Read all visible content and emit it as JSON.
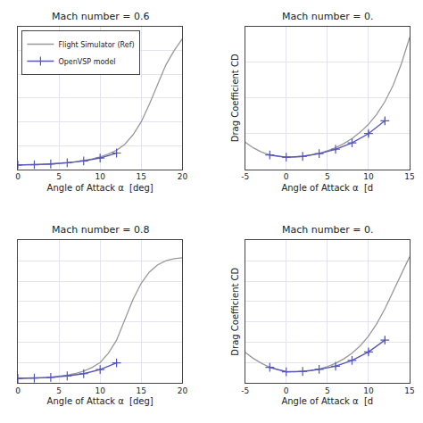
{
  "chart_data": [
    {
      "type": "line",
      "title": "Mach number = 0.6",
      "x_label": "Angle of Attack α  [deg]",
      "xlim": [
        0,
        20
      ],
      "xticks": [
        0,
        5,
        10,
        15,
        20
      ],
      "ylim": [
        0,
        0.6
      ],
      "yticks": [
        0,
        0.1,
        0.2,
        0.3,
        0.4,
        0.5,
        0.6
      ],
      "grid": true,
      "tick_labels": "x",
      "legend": "upper left",
      "series": [
        {
          "name": "Flight Simulator (Ref)",
          "color": "#999999",
          "x": [
            0,
            1,
            2,
            3,
            4,
            5,
            6,
            7,
            8,
            9,
            10,
            11,
            12,
            13,
            14,
            15,
            16,
            17,
            18,
            19,
            20
          ],
          "values": [
            0.018,
            0.018,
            0.019,
            0.02,
            0.022,
            0.024,
            0.027,
            0.031,
            0.036,
            0.043,
            0.052,
            0.064,
            0.08,
            0.105,
            0.145,
            0.2,
            0.275,
            0.36,
            0.44,
            0.5,
            0.55
          ]
        },
        {
          "name": "OpenVSP model",
          "color": "#5555bb",
          "marker": "plus",
          "x": [
            0,
            2,
            4,
            6,
            8,
            10,
            12
          ],
          "values": [
            0.018,
            0.019,
            0.022,
            0.027,
            0.035,
            0.047,
            0.068
          ],
          "errors": [
            0.0015,
            0.0015,
            0.0015,
            0.002,
            0.003,
            0.004,
            0.005
          ]
        }
      ]
    },
    {
      "type": "line",
      "title": "Mach number = 0.",
      "x_label": "Angle of Attack α  [d",
      "y_label": "Drag Coefficient CD",
      "xlim": [
        -5,
        15
      ],
      "xticks": [
        -5,
        0,
        5,
        10,
        15
      ],
      "ylim": [
        0,
        0.2
      ],
      "yticks": [
        0,
        0.05,
        0.1,
        0.15,
        0.2
      ],
      "grid": true,
      "tick_labels": "x",
      "series": [
        {
          "color": "#999999",
          "x": [
            -5,
            -4,
            -3,
            -2,
            -1,
            0,
            1,
            2,
            3,
            4,
            5,
            6,
            7,
            8,
            9,
            10,
            11,
            12,
            13,
            14,
            15
          ],
          "values": [
            0.038,
            0.03,
            0.024,
            0.02,
            0.018,
            0.017,
            0.017,
            0.018,
            0.02,
            0.022,
            0.026,
            0.03,
            0.036,
            0.043,
            0.052,
            0.063,
            0.077,
            0.095,
            0.118,
            0.148,
            0.185
          ]
        },
        {
          "color": "#5555bb",
          "marker": "plus",
          "x": [
            -2,
            0,
            2,
            4,
            6,
            8,
            10,
            12
          ],
          "values": [
            0.02,
            0.017,
            0.018,
            0.022,
            0.028,
            0.037,
            0.05,
            0.068
          ],
          "errors": [
            0.0015,
            0.0015,
            0.0015,
            0.002,
            0.002,
            0.003,
            0.004,
            0.005
          ]
        }
      ]
    },
    {
      "type": "line",
      "title": "Mach number = 0.8",
      "x_label": "Angle of Attack α  [deg]",
      "xlim": [
        0,
        20
      ],
      "xticks": [
        0,
        5,
        10,
        15,
        20
      ],
      "ylim": [
        0,
        0.7
      ],
      "yticks": [
        0,
        0.1,
        0.2,
        0.3,
        0.4,
        0.5,
        0.6,
        0.7
      ],
      "grid": true,
      "tick_labels": "x",
      "series": [
        {
          "color": "#999999",
          "x": [
            0,
            1,
            2,
            3,
            4,
            5,
            6,
            7,
            8,
            9,
            10,
            11,
            12,
            13,
            14,
            15,
            16,
            17,
            18,
            19,
            20
          ],
          "values": [
            0.022,
            0.022,
            0.023,
            0.025,
            0.028,
            0.032,
            0.038,
            0.046,
            0.058,
            0.075,
            0.1,
            0.145,
            0.21,
            0.31,
            0.41,
            0.49,
            0.545,
            0.58,
            0.6,
            0.61,
            0.615
          ]
        },
        {
          "color": "#5555bb",
          "marker": "plus",
          "x": [
            0,
            2,
            4,
            6,
            8,
            10,
            12
          ],
          "values": [
            0.022,
            0.023,
            0.027,
            0.034,
            0.045,
            0.065,
            0.098
          ],
          "errors": [
            0.0015,
            0.0015,
            0.002,
            0.003,
            0.004,
            0.005,
            0.008
          ]
        }
      ]
    },
    {
      "type": "line",
      "title": "Mach number = 0.",
      "x_label": "Angle of Attack α  [d",
      "y_label": "Drag Coefficient CD",
      "xlim": [
        -5,
        15
      ],
      "xticks": [
        -5,
        0,
        5,
        10,
        15
      ],
      "ylim": [
        0,
        0.35
      ],
      "yticks": [
        0,
        0.05,
        0.1,
        0.15,
        0.2,
        0.25,
        0.3,
        0.35
      ],
      "grid": true,
      "tick_labels": "x",
      "series": [
        {
          "color": "#999999",
          "x": [
            -5,
            -4,
            -3,
            -2,
            -1,
            0,
            1,
            2,
            3,
            4,
            5,
            6,
            7,
            8,
            9,
            10,
            11,
            12,
            13,
            14,
            15
          ],
          "values": [
            0.075,
            0.06,
            0.048,
            0.038,
            0.032,
            0.028,
            0.027,
            0.028,
            0.03,
            0.034,
            0.04,
            0.048,
            0.059,
            0.073,
            0.091,
            0.115,
            0.145,
            0.182,
            0.225,
            0.268,
            0.31
          ]
        },
        {
          "color": "#5555bb",
          "marker": "plus",
          "x": [
            -2,
            0,
            2,
            4,
            6,
            8,
            10,
            12
          ],
          "values": [
            0.038,
            0.027,
            0.028,
            0.033,
            0.041,
            0.055,
            0.076,
            0.105
          ],
          "errors": [
            0.003,
            0.002,
            0.002,
            0.002,
            0.003,
            0.004,
            0.006,
            0.008
          ]
        }
      ]
    }
  ]
}
